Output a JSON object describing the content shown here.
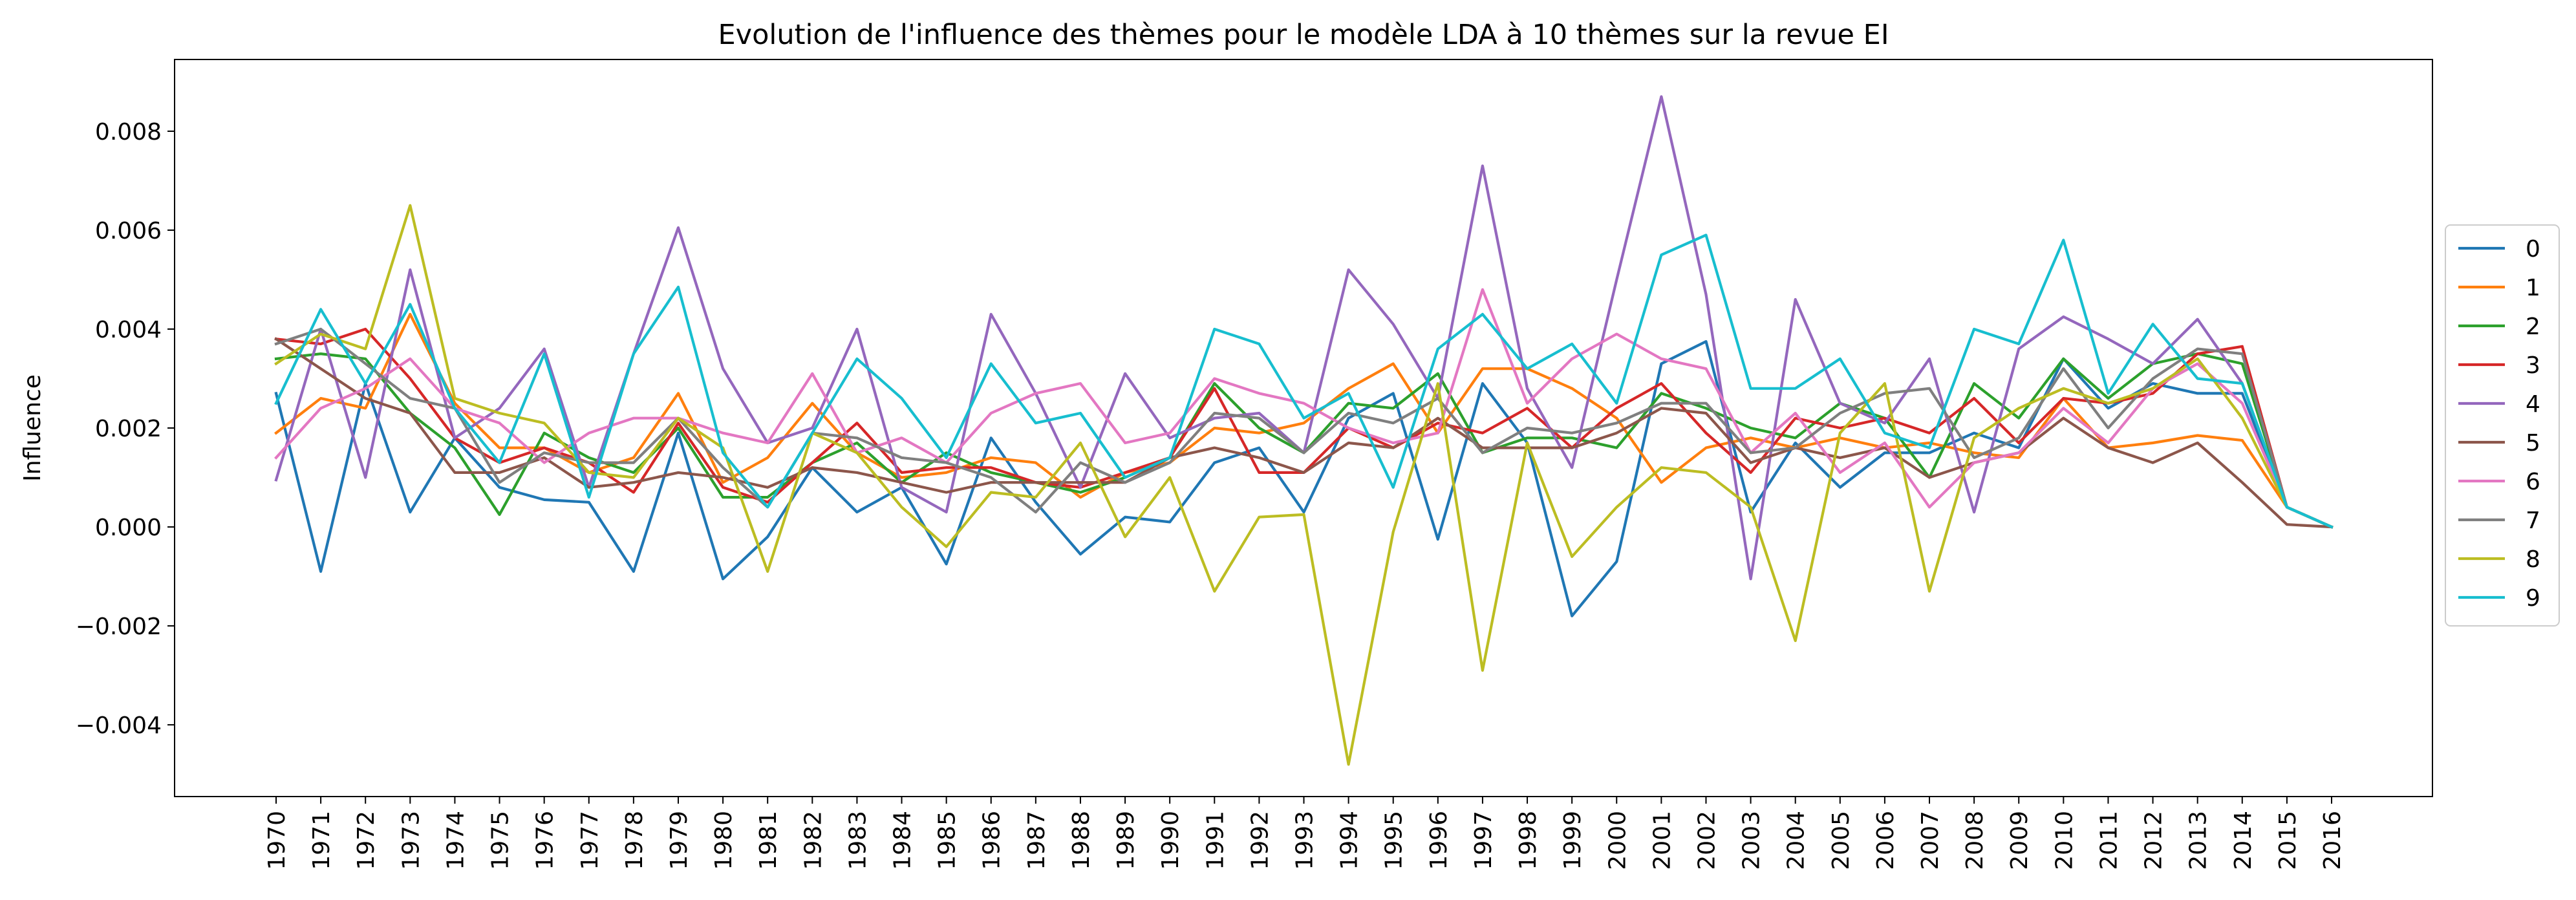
{
  "chart_data": {
    "type": "line",
    "title": "Evolution de l'influence des thèmes pour le modèle LDA à 10 thèmes sur la revue EI",
    "xlabel": "",
    "ylabel": "Influence",
    "ylim": [
      -0.00545,
      0.00945
    ],
    "yticks": [
      -0.004,
      -0.002,
      0.0,
      0.002,
      0.004,
      0.006,
      0.008
    ],
    "ytick_labels": [
      "−0.004",
      "−0.002",
      "0.000",
      "0.002",
      "0.004",
      "0.006",
      "0.008"
    ],
    "grid": false,
    "legend_position": "center-right outside",
    "x": [
      "1970",
      "1971",
      "1972",
      "1973",
      "1974",
      "1975",
      "1976",
      "1977",
      "1978",
      "1979",
      "1980",
      "1981",
      "1982",
      "1983",
      "1984",
      "1985",
      "1986",
      "1987",
      "1988",
      "1989",
      "1990",
      "1991",
      "1992",
      "1993",
      "1994",
      "1995",
      "1996",
      "1997",
      "1998",
      "1999",
      "2000",
      "2001",
      "2002",
      "2003",
      "2004",
      "2005",
      "2006",
      "2007",
      "2008",
      "2009",
      "2010",
      "2011",
      "2012",
      "2013",
      "2014",
      "2015",
      "2016"
    ],
    "series": [
      {
        "name": "0",
        "color": "#1f77b4",
        "values": [
          0.0027,
          -0.0009,
          0.0029,
          0.0003,
          0.0018,
          0.0008,
          0.00055,
          0.0005,
          -0.0009,
          0.0019,
          -0.00105,
          -0.0002,
          0.0012,
          0.0003,
          0.0008,
          -0.00075,
          0.0018,
          0.0005,
          -0.00055,
          0.0002,
          0.0001,
          0.0013,
          0.0016,
          0.0003,
          0.0022,
          0.0027,
          -0.00025,
          0.0029,
          0.0017,
          -0.0018,
          -0.0007,
          0.0033,
          0.00375,
          0.0003,
          0.0017,
          0.0008,
          0.0015,
          0.0015,
          0.0019,
          0.0016,
          0.0034,
          0.0024,
          0.0029,
          0.0027,
          0.0027,
          0.0004,
          0.0
        ]
      },
      {
        "name": "1",
        "color": "#ff7f0e",
        "values": [
          0.0019,
          0.0026,
          0.0024,
          0.0043,
          0.0025,
          0.0016,
          0.0016,
          0.0011,
          0.0014,
          0.0027,
          0.0009,
          0.0014,
          0.0025,
          0.0015,
          0.001,
          0.0011,
          0.0014,
          0.0013,
          0.0006,
          0.0011,
          0.0013,
          0.002,
          0.0019,
          0.0021,
          0.0028,
          0.0033,
          0.0019,
          0.0032,
          0.0032,
          0.0028,
          0.0022,
          0.0009,
          0.0016,
          0.0018,
          0.0016,
          0.0018,
          0.0016,
          0.0017,
          0.0015,
          0.0014,
          0.0026,
          0.0016,
          0.0017,
          0.00185,
          0.00175,
          0.0004,
          0.0
        ]
      },
      {
        "name": "2",
        "color": "#2ca02c",
        "values": [
          0.0034,
          0.0035,
          0.0034,
          0.0023,
          0.0016,
          0.00025,
          0.0019,
          0.0014,
          0.0011,
          0.002,
          0.0006,
          0.0006,
          0.0013,
          0.0017,
          0.0009,
          0.0015,
          0.0011,
          0.0009,
          0.0007,
          0.001,
          0.0014,
          0.0029,
          0.002,
          0.0015,
          0.0025,
          0.0024,
          0.0031,
          0.0015,
          0.0018,
          0.0018,
          0.0016,
          0.0027,
          0.0024,
          0.002,
          0.0018,
          0.0025,
          0.0022,
          0.001,
          0.0029,
          0.0022,
          0.0034,
          0.0026,
          0.0033,
          0.0035,
          0.0033,
          0.0004,
          0.0
        ]
      },
      {
        "name": "3",
        "color": "#d62728",
        "values": [
          0.0038,
          0.0037,
          0.004,
          0.003,
          0.0018,
          0.0013,
          0.0016,
          0.0013,
          0.0007,
          0.0021,
          0.0008,
          0.0005,
          0.0013,
          0.0021,
          0.0011,
          0.0012,
          0.0012,
          0.0009,
          0.0008,
          0.0011,
          0.0014,
          0.0028,
          0.0011,
          0.0011,
          0.002,
          0.0016,
          0.0021,
          0.0019,
          0.0024,
          0.0016,
          0.0024,
          0.0029,
          0.0019,
          0.0011,
          0.0022,
          0.002,
          0.0022,
          0.0019,
          0.0026,
          0.0017,
          0.0026,
          0.0025,
          0.0027,
          0.0035,
          0.00365,
          0.0004,
          0.0
        ]
      },
      {
        "name": "4",
        "color": "#9467bd",
        "values": [
          0.00095,
          0.004,
          0.001,
          0.0052,
          0.0018,
          0.0024,
          0.0036,
          0.0008,
          0.0035,
          0.00605,
          0.0032,
          0.0017,
          0.002,
          0.004,
          0.0008,
          0.0003,
          0.0043,
          0.0027,
          0.0008,
          0.0031,
          0.0018,
          0.0022,
          0.0023,
          0.0015,
          0.0052,
          0.0041,
          0.0026,
          0.0073,
          0.0028,
          0.0012,
          0.005,
          0.0087,
          0.0047,
          -0.00105,
          0.0046,
          0.0025,
          0.0021,
          0.0034,
          0.0003,
          0.0036,
          0.00425,
          0.0038,
          0.0033,
          0.0042,
          0.0029,
          0.0004,
          0.0
        ]
      },
      {
        "name": "5",
        "color": "#8c564b",
        "values": [
          0.0038,
          0.0032,
          0.0026,
          0.0023,
          0.0011,
          0.0011,
          0.0014,
          0.0008,
          0.0009,
          0.0011,
          0.001,
          0.0008,
          0.0012,
          0.0011,
          0.0009,
          0.0007,
          0.0009,
          0.0009,
          0.0009,
          0.0009,
          0.0014,
          0.0016,
          0.0014,
          0.0011,
          0.0017,
          0.0016,
          0.0022,
          0.0016,
          0.0016,
          0.0016,
          0.0019,
          0.0024,
          0.0023,
          0.0013,
          0.0016,
          0.0014,
          0.0016,
          0.001,
          0.0013,
          0.0015,
          0.0022,
          0.0016,
          0.0013,
          0.0017,
          0.0009,
          5e-05,
          0.0
        ]
      },
      {
        "name": "6",
        "color": "#e377c2",
        "values": [
          0.0014,
          0.0024,
          0.0028,
          0.0034,
          0.0024,
          0.0021,
          0.0013,
          0.0019,
          0.0022,
          0.0022,
          0.0019,
          0.0017,
          0.0031,
          0.0015,
          0.0018,
          0.0013,
          0.0023,
          0.0027,
          0.0029,
          0.0017,
          0.0019,
          0.003,
          0.0027,
          0.0025,
          0.002,
          0.0017,
          0.0019,
          0.0048,
          0.0025,
          0.0034,
          0.0039,
          0.0034,
          0.0032,
          0.0015,
          0.0023,
          0.0011,
          0.0017,
          0.0004,
          0.0013,
          0.0015,
          0.0024,
          0.0017,
          0.0028,
          0.0033,
          0.0025,
          0.0004,
          0.0
        ]
      },
      {
        "name": "7",
        "color": "#7f7f7f",
        "values": [
          0.0037,
          0.004,
          0.0033,
          0.0026,
          0.0024,
          0.0009,
          0.0015,
          0.0013,
          0.0013,
          0.0022,
          0.0012,
          0.0004,
          0.0019,
          0.0018,
          0.0014,
          0.0013,
          0.001,
          0.0003,
          0.0013,
          0.0009,
          0.0013,
          0.0023,
          0.0022,
          0.0015,
          0.0023,
          0.0021,
          0.0026,
          0.0015,
          0.002,
          0.0019,
          0.0021,
          0.0025,
          0.0025,
          0.0015,
          0.0016,
          0.0023,
          0.0027,
          0.0028,
          0.0014,
          0.0018,
          0.0032,
          0.002,
          0.003,
          0.0036,
          0.0035,
          0.0004,
          0.0
        ]
      },
      {
        "name": "8",
        "color": "#bcbd22",
        "values": [
          0.0033,
          0.0039,
          0.0036,
          0.0065,
          0.0026,
          0.0023,
          0.0021,
          0.0011,
          0.001,
          0.0022,
          0.0016,
          -0.0009,
          0.0019,
          0.0015,
          0.0004,
          -0.0004,
          0.0007,
          0.0006,
          0.0017,
          -0.0002,
          0.001,
          -0.0013,
          0.0002,
          0.00025,
          -0.0048,
          -0.0001,
          0.0029,
          -0.0029,
          0.0017,
          -0.0006,
          0.0004,
          0.0012,
          0.0011,
          0.0004,
          -0.0023,
          0.0019,
          0.0029,
          -0.0013,
          0.0018,
          0.0024,
          0.0028,
          0.0025,
          0.0028,
          0.0034,
          0.0022,
          0.0004,
          0.0
        ]
      },
      {
        "name": "9",
        "color": "#17becf",
        "values": [
          0.0025,
          0.0044,
          0.0029,
          0.0045,
          0.0024,
          0.0013,
          0.0035,
          0.0006,
          0.0035,
          0.00485,
          0.0015,
          0.0004,
          0.0019,
          0.0034,
          0.0026,
          0.0014,
          0.0033,
          0.0021,
          0.0023,
          0.001,
          0.0014,
          0.004,
          0.0037,
          0.0022,
          0.0027,
          0.0008,
          0.0036,
          0.0043,
          0.0032,
          0.0037,
          0.0025,
          0.0055,
          0.0059,
          0.0028,
          0.0028,
          0.0034,
          0.0019,
          0.0016,
          0.004,
          0.0037,
          0.0058,
          0.0027,
          0.0041,
          0.003,
          0.0029,
          0.0004,
          0.0
        ]
      }
    ]
  }
}
